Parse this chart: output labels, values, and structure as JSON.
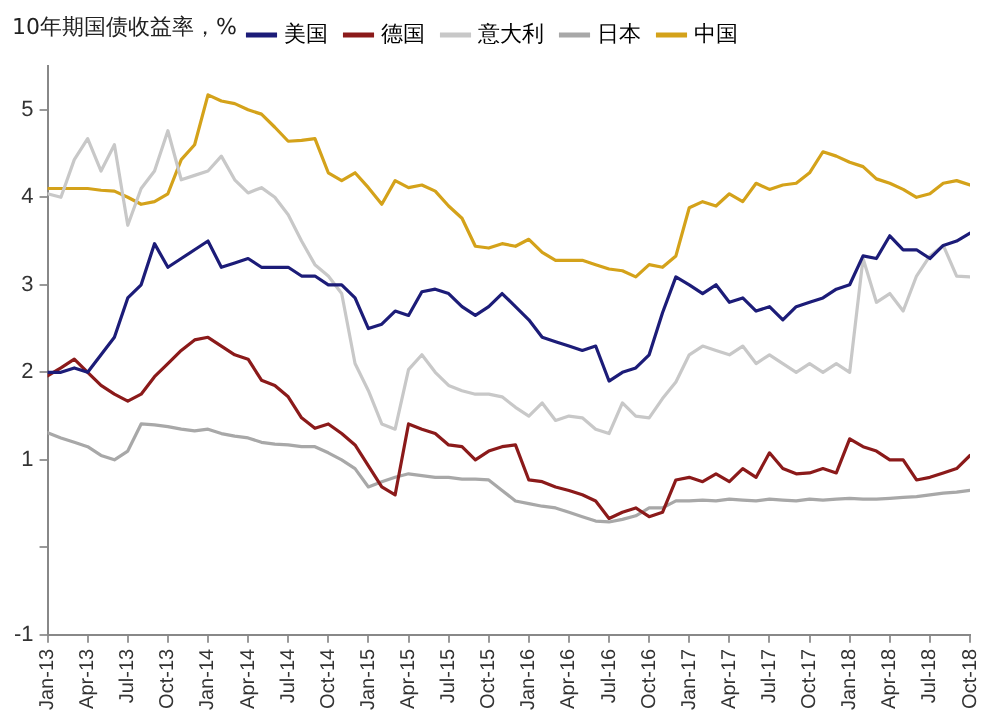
{
  "chart_data": {
    "type": "line",
    "title": "10年期国债收益率，%",
    "legend": "top",
    "x": [
      "2013-01",
      "2013-02",
      "2013-03",
      "2013-04",
      "2013-05",
      "2013-06",
      "2013-07",
      "2013-08",
      "2013-09",
      "2013-10",
      "2013-11",
      "2013-12",
      "2014-01",
      "2014-02",
      "2014-03",
      "2014-04",
      "2014-05",
      "2014-06",
      "2014-07",
      "2014-08",
      "2014-09",
      "2014-10",
      "2014-11",
      "2014-12",
      "2015-01",
      "2015-02",
      "2015-03",
      "2015-04",
      "2015-05",
      "2015-06",
      "2015-07",
      "2015-08",
      "2015-09",
      "2015-10",
      "2015-11",
      "2015-12",
      "2016-01",
      "2016-02",
      "2016-03",
      "2016-04",
      "2016-05",
      "2016-06",
      "2016-07",
      "2016-08",
      "2016-09",
      "2016-10",
      "2016-11",
      "2016-12",
      "2017-01",
      "2017-02",
      "2017-03",
      "2017-04",
      "2017-05",
      "2017-06",
      "2017-07",
      "2017-08",
      "2017-09",
      "2017-10",
      "2017-11",
      "2017-12",
      "2018-01",
      "2018-02",
      "2018-03",
      "2018-04",
      "2018-05",
      "2018-06",
      "2018-07",
      "2018-08",
      "2018-09",
      "2018-10"
    ],
    "xlim": [
      "2013-01",
      "2018-10"
    ],
    "xticks": [
      {
        "value": "2013-01",
        "label": "Jan-13"
      },
      {
        "value": "2013-04",
        "label": "Apr-13"
      },
      {
        "value": "2013-07",
        "label": "Jul-13"
      },
      {
        "value": "2013-10",
        "label": "Oct-13"
      },
      {
        "value": "2014-01",
        "label": "Jan-14"
      },
      {
        "value": "2014-04",
        "label": "Apr-14"
      },
      {
        "value": "2014-07",
        "label": "Jul-14"
      },
      {
        "value": "2014-10",
        "label": "Oct-14"
      },
      {
        "value": "2015-01",
        "label": "Jan-15"
      },
      {
        "value": "2015-04",
        "label": "Apr-15"
      },
      {
        "value": "2015-07",
        "label": "Jul-15"
      },
      {
        "value": "2015-10",
        "label": "Oct-15"
      },
      {
        "value": "2016-01",
        "label": "Jan-16"
      },
      {
        "value": "2016-04",
        "label": "Apr-16"
      },
      {
        "value": "2016-07",
        "label": "Jul-16"
      },
      {
        "value": "2016-10",
        "label": "Oct-16"
      },
      {
        "value": "2017-01",
        "label": "Jan-17"
      },
      {
        "value": "2017-04",
        "label": "Apr-17"
      },
      {
        "value": "2017-07",
        "label": "Jul-17"
      },
      {
        "value": "2017-10",
        "label": "Oct-17"
      },
      {
        "value": "2018-01",
        "label": "Jan-18"
      },
      {
        "value": "2018-04",
        "label": "Apr-18"
      },
      {
        "value": "2018-07",
        "label": "Jul-18"
      },
      {
        "value": "2018-10",
        "label": "Oct-18"
      }
    ],
    "ylim": [
      -1,
      5.5
    ],
    "yticks": [
      -1,
      {
        "value": 0,
        "label": null
      },
      1,
      2,
      3,
      4,
      5
    ],
    "grid": false,
    "marker": "none",
    "line_style": "solid",
    "series": [
      {
        "name": "美国",
        "color": "#1c1c78",
        "values": [
          2.0,
          2.0,
          2.05,
          2.0,
          2.2,
          2.4,
          2.85,
          3.0,
          3.47,
          3.2,
          3.3,
          3.4,
          3.5,
          3.2,
          3.25,
          3.3,
          3.2,
          3.2,
          3.2,
          3.1,
          3.1,
          3.0,
          3.0,
          2.85,
          2.5,
          2.55,
          2.7,
          2.65,
          2.92,
          2.95,
          2.9,
          2.75,
          2.65,
          2.75,
          2.9,
          2.75,
          2.6,
          2.4,
          2.35,
          2.3,
          2.25,
          2.3,
          1.9,
          2.0,
          2.05,
          2.2,
          2.68,
          3.09,
          3.0,
          2.9,
          3.0,
          2.8,
          2.85,
          2.7,
          2.75,
          2.6,
          2.75,
          2.8,
          2.85,
          2.95,
          3.0,
          3.33,
          3.3,
          3.56,
          3.4,
          3.4,
          3.3,
          3.45,
          3.5,
          3.59
        ]
      },
      {
        "name": "德国",
        "color": "#8b1a1a",
        "values": [
          1.96,
          2.05,
          2.15,
          2.0,
          1.85,
          1.75,
          1.67,
          1.75,
          1.95,
          2.1,
          2.25,
          2.37,
          2.4,
          2.3,
          2.2,
          2.15,
          1.91,
          1.85,
          1.72,
          1.48,
          1.36,
          1.41,
          1.3,
          1.17,
          0.93,
          0.69,
          0.6,
          1.41,
          1.35,
          1.3,
          1.17,
          1.15,
          1.0,
          1.1,
          1.15,
          1.17,
          0.77,
          0.75,
          0.69,
          0.65,
          0.6,
          0.53,
          0.33,
          0.4,
          0.45,
          0.35,
          0.4,
          0.77,
          0.8,
          0.75,
          0.84,
          0.75,
          0.9,
          0.8,
          1.08,
          0.9,
          0.84,
          0.85,
          0.9,
          0.85,
          1.24,
          1.15,
          1.1,
          1.0,
          1.0,
          0.77,
          0.8,
          0.85,
          0.9,
          1.05
        ]
      },
      {
        "name": "意大利",
        "color": "#c8c8c8",
        "values": [
          4.04,
          4.0,
          4.43,
          4.67,
          4.3,
          4.6,
          3.68,
          4.1,
          4.3,
          4.76,
          4.2,
          4.25,
          4.3,
          4.47,
          4.2,
          4.05,
          4.11,
          4.0,
          3.8,
          3.5,
          3.23,
          3.1,
          2.9,
          2.1,
          1.79,
          1.41,
          1.35,
          2.03,
          2.2,
          2.0,
          1.85,
          1.79,
          1.75,
          1.75,
          1.72,
          1.6,
          1.5,
          1.65,
          1.45,
          1.5,
          1.48,
          1.35,
          1.3,
          1.65,
          1.5,
          1.48,
          1.7,
          1.89,
          2.2,
          2.3,
          2.25,
          2.2,
          2.3,
          2.1,
          2.2,
          2.1,
          2.0,
          2.1,
          2.0,
          2.1,
          2.0,
          3.3,
          2.8,
          2.9,
          2.7,
          3.1,
          3.33,
          3.45,
          3.1,
          3.09
        ]
      },
      {
        "name": "日本",
        "color": "#a8a8a8",
        "values": [
          1.31,
          1.25,
          1.2,
          1.15,
          1.05,
          1.0,
          1.1,
          1.41,
          1.4,
          1.38,
          1.35,
          1.33,
          1.35,
          1.3,
          1.27,
          1.25,
          1.2,
          1.18,
          1.17,
          1.15,
          1.15,
          1.08,
          1.0,
          0.9,
          0.69,
          0.75,
          0.8,
          0.84,
          0.82,
          0.8,
          0.8,
          0.78,
          0.78,
          0.77,
          0.65,
          0.53,
          0.5,
          0.47,
          0.45,
          0.4,
          0.35,
          0.3,
          0.29,
          0.32,
          0.36,
          0.45,
          0.45,
          0.53,
          0.53,
          0.54,
          0.53,
          0.55,
          0.54,
          0.53,
          0.55,
          0.54,
          0.53,
          0.55,
          0.54,
          0.55,
          0.56,
          0.55,
          0.55,
          0.56,
          0.57,
          0.58,
          0.6,
          0.62,
          0.63,
          0.65
        ]
      },
      {
        "name": "中国",
        "color": "#d4a21a",
        "values": [
          4.1,
          4.1,
          4.1,
          4.1,
          4.08,
          4.07,
          4.0,
          3.92,
          3.95,
          4.04,
          4.43,
          4.6,
          5.17,
          5.1,
          5.07,
          5.0,
          4.95,
          4.8,
          4.64,
          4.65,
          4.67,
          4.28,
          4.19,
          4.28,
          4.11,
          3.92,
          4.19,
          4.11,
          4.14,
          4.07,
          3.9,
          3.76,
          3.44,
          3.42,
          3.47,
          3.44,
          3.52,
          3.37,
          3.28,
          3.28,
          3.28,
          3.23,
          3.18,
          3.16,
          3.09,
          3.23,
          3.2,
          3.33,
          3.88,
          3.95,
          3.9,
          4.04,
          3.95,
          4.16,
          4.09,
          4.14,
          4.16,
          4.28,
          4.52,
          4.47,
          4.4,
          4.35,
          4.21,
          4.16,
          4.09,
          4.0,
          4.04,
          4.16,
          4.19,
          4.14
        ]
      }
    ]
  }
}
